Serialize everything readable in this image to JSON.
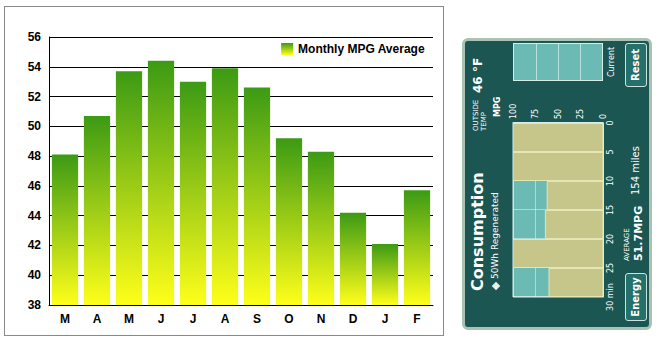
{
  "chart_data": {
    "type": "bar",
    "categories": [
      "M",
      "A",
      "M",
      "J",
      "J",
      "A",
      "S",
      "O",
      "N",
      "D",
      "J",
      "F"
    ],
    "series": [
      {
        "name": "Monthly MPG Average",
        "color": "#3c9a14",
        "values": [
          48.1,
          50.7,
          53.7,
          54.4,
          53.0,
          53.9,
          52.6,
          49.2,
          48.3,
          44.2,
          42.1,
          45.7
        ]
      }
    ],
    "ylim": [
      38,
      56
    ],
    "yticks": [
      38,
      40,
      42,
      44,
      46,
      48,
      50,
      52,
      54,
      56
    ],
    "grid": true,
    "legend": "upper right"
  },
  "display": {
    "title": "Consumption",
    "regenerated": "50Wh Regenerated",
    "outside_temp": {
      "label": "OUTSIDE TEMP",
      "text": "46 °F"
    },
    "chart": {
      "type": "bar",
      "y_label": "MPG",
      "ylim": [
        0,
        100
      ],
      "yticks": [
        0,
        25,
        50,
        75,
        100
      ],
      "xlim": [
        0,
        30
      ],
      "xticks": [
        0,
        5,
        10,
        15,
        20,
        25,
        {
          "value": 30,
          "label": "30 min"
        }
      ],
      "bins": [
        0,
        5,
        10,
        15,
        20,
        25,
        30
      ],
      "values": [
        100,
        100,
        62,
        64,
        100,
        60
      ],
      "current_label": "Current"
    },
    "average": {
      "label": "AVERAGE",
      "text": "51.7MPG"
    },
    "distance": "154 miles",
    "buttons": [
      "Energy",
      "Reset"
    ]
  }
}
